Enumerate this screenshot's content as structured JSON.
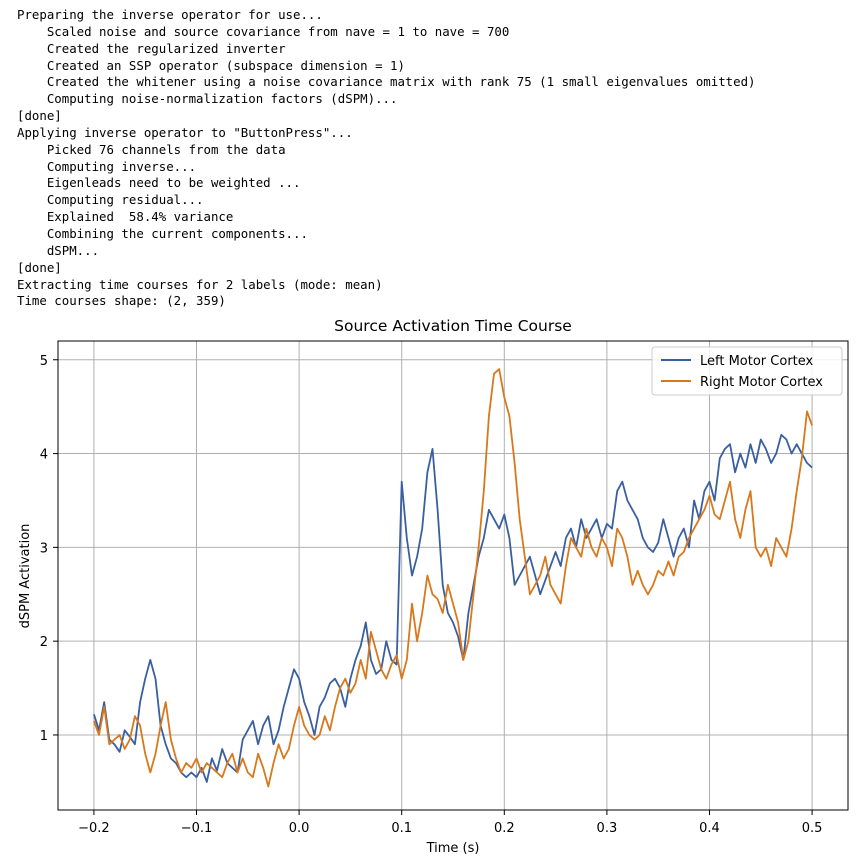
{
  "console": {
    "lines": [
      "Preparing the inverse operator for use...",
      "    Scaled noise and source covariance from nave = 1 to nave = 700",
      "    Created the regularized inverter",
      "    Created an SSP operator (subspace dimension = 1)",
      "    Created the whitener using a noise covariance matrix with rank 75 (1 small eigenvalues omitted)",
      "    Computing noise-normalization factors (dSPM)...",
      "[done]",
      "Applying inverse operator to \"ButtonPress\"...",
      "    Picked 76 channels from the data",
      "    Computing inverse...",
      "    Eigenleads need to be weighted ...",
      "    Computing residual...",
      "    Explained  58.4% variance",
      "    Combining the current components...",
      "    dSPM...",
      "[done]",
      "Extracting time courses for 2 labels (mode: mean)",
      "Time courses shape: (2, 359)"
    ]
  },
  "chart_data": {
    "type": "line",
    "title": "Source Activation Time Course",
    "xlabel": "Time (s)",
    "ylabel": "dSPM Activation",
    "xlim": [
      -0.235,
      0.535
    ],
    "ylim": [
      0.2,
      5.2
    ],
    "xticks": [
      -0.2,
      -0.1,
      0.0,
      0.1,
      0.2,
      0.3,
      0.4,
      0.5
    ],
    "xtick_labels": [
      "−0.2",
      "−0.1",
      "0.0",
      "0.1",
      "0.2",
      "0.3",
      "0.4",
      "0.5"
    ],
    "yticks": [
      1,
      2,
      3,
      4,
      5
    ],
    "ytick_labels": [
      "1",
      "2",
      "3",
      "4",
      "5"
    ],
    "grid": true,
    "legend_position": "top-right",
    "x": [
      -0.2,
      -0.195,
      -0.19,
      -0.185,
      -0.18,
      -0.175,
      -0.17,
      -0.165,
      -0.16,
      -0.155,
      -0.15,
      -0.145,
      -0.14,
      -0.135,
      -0.13,
      -0.125,
      -0.12,
      -0.115,
      -0.11,
      -0.105,
      -0.1,
      -0.095,
      -0.09,
      -0.085,
      -0.08,
      -0.075,
      -0.07,
      -0.065,
      -0.06,
      -0.055,
      -0.05,
      -0.045,
      -0.04,
      -0.035,
      -0.03,
      -0.025,
      -0.02,
      -0.015,
      -0.01,
      -0.005,
      0.0,
      0.005,
      0.01,
      0.015,
      0.02,
      0.025,
      0.03,
      0.035,
      0.04,
      0.045,
      0.05,
      0.055,
      0.06,
      0.065,
      0.07,
      0.075,
      0.08,
      0.085,
      0.09,
      0.095,
      0.1,
      0.105,
      0.11,
      0.115,
      0.12,
      0.125,
      0.13,
      0.135,
      0.14,
      0.145,
      0.15,
      0.155,
      0.16,
      0.165,
      0.17,
      0.175,
      0.18,
      0.185,
      0.19,
      0.195,
      0.2,
      0.205,
      0.21,
      0.215,
      0.22,
      0.225,
      0.23,
      0.235,
      0.24,
      0.245,
      0.25,
      0.255,
      0.26,
      0.265,
      0.27,
      0.275,
      0.28,
      0.285,
      0.29,
      0.295,
      0.3,
      0.305,
      0.31,
      0.315,
      0.32,
      0.325,
      0.33,
      0.335,
      0.34,
      0.345,
      0.35,
      0.355,
      0.36,
      0.365,
      0.37,
      0.375,
      0.38,
      0.385,
      0.39,
      0.395,
      0.4,
      0.405,
      0.41,
      0.415,
      0.42,
      0.425,
      0.43,
      0.435,
      0.44,
      0.445,
      0.45,
      0.455,
      0.46,
      0.465,
      0.47,
      0.475,
      0.48,
      0.485,
      0.49,
      0.495,
      0.5
    ],
    "series": [
      {
        "name": "Left Motor Cortex",
        "color": "#3a5fa0",
        "values": [
          1.22,
          1.05,
          1.35,
          0.95,
          0.9,
          0.82,
          1.05,
          0.98,
          0.9,
          1.35,
          1.6,
          1.8,
          1.6,
          1.1,
          0.9,
          0.75,
          0.7,
          0.6,
          0.55,
          0.6,
          0.55,
          0.65,
          0.5,
          0.75,
          0.62,
          0.85,
          0.7,
          0.65,
          0.6,
          0.95,
          1.05,
          1.15,
          0.9,
          1.1,
          1.2,
          0.9,
          1.05,
          1.3,
          1.5,
          1.7,
          1.6,
          1.35,
          1.2,
          1.0,
          1.3,
          1.4,
          1.55,
          1.6,
          1.5,
          1.3,
          1.6,
          1.8,
          1.95,
          2.2,
          1.8,
          1.65,
          1.7,
          2.0,
          1.8,
          1.75,
          3.7,
          3.1,
          2.7,
          2.9,
          3.2,
          3.8,
          4.05,
          3.4,
          2.6,
          2.3,
          2.2,
          2.05,
          1.8,
          2.3,
          2.6,
          2.9,
          3.1,
          3.4,
          3.3,
          3.2,
          3.35,
          3.1,
          2.6,
          2.7,
          2.8,
          2.9,
          2.7,
          2.5,
          2.65,
          2.8,
          2.95,
          2.8,
          3.1,
          3.2,
          3.0,
          3.3,
          3.1,
          3.2,
          3.3,
          3.1,
          3.25,
          3.2,
          3.6,
          3.7,
          3.5,
          3.4,
          3.3,
          3.1,
          3.0,
          2.95,
          3.05,
          3.3,
          3.1,
          2.9,
          3.1,
          3.2,
          3.0,
          3.5,
          3.3,
          3.6,
          3.7,
          3.5,
          3.95,
          4.05,
          4.1,
          3.8,
          4.0,
          3.85,
          4.1,
          3.9,
          4.15,
          4.05,
          3.9,
          4.0,
          4.2,
          4.15,
          4.0,
          4.1,
          4.0,
          3.9,
          3.85
        ]
      },
      {
        "name": "Right Motor Cortex",
        "color": "#d9781b",
        "values": [
          1.15,
          1.0,
          1.3,
          0.9,
          0.95,
          1.0,
          0.85,
          0.95,
          1.2,
          1.1,
          0.8,
          0.6,
          0.8,
          1.1,
          1.35,
          0.95,
          0.75,
          0.6,
          0.7,
          0.65,
          0.75,
          0.6,
          0.7,
          0.65,
          0.6,
          0.55,
          0.7,
          0.8,
          0.6,
          0.75,
          0.6,
          0.55,
          0.8,
          0.65,
          0.45,
          0.7,
          0.9,
          0.75,
          0.85,
          1.1,
          1.3,
          1.1,
          1.0,
          0.95,
          1.0,
          1.2,
          1.05,
          1.3,
          1.5,
          1.6,
          1.45,
          1.55,
          1.8,
          1.6,
          2.1,
          1.9,
          1.7,
          1.6,
          1.75,
          1.85,
          1.6,
          1.8,
          2.4,
          2.0,
          2.3,
          2.7,
          2.5,
          2.45,
          2.3,
          2.6,
          2.4,
          2.2,
          1.8,
          2.0,
          2.5,
          3.0,
          3.6,
          4.4,
          4.85,
          4.9,
          4.6,
          4.4,
          3.9,
          3.3,
          2.9,
          2.5,
          2.6,
          2.7,
          2.9,
          2.6,
          2.5,
          2.4,
          2.8,
          3.1,
          3.0,
          2.9,
          3.2,
          3.0,
          2.9,
          3.1,
          3.0,
          2.8,
          3.2,
          3.1,
          2.9,
          2.6,
          2.75,
          2.6,
          2.5,
          2.6,
          2.75,
          2.7,
          2.85,
          2.7,
          2.9,
          2.95,
          3.1,
          3.2,
          3.3,
          3.4,
          3.55,
          3.35,
          3.3,
          3.5,
          3.7,
          3.3,
          3.1,
          3.4,
          3.6,
          3.0,
          2.9,
          3.0,
          2.8,
          3.1,
          3.0,
          2.9,
          3.2,
          3.6,
          3.95,
          4.45,
          4.3
        ]
      }
    ]
  }
}
